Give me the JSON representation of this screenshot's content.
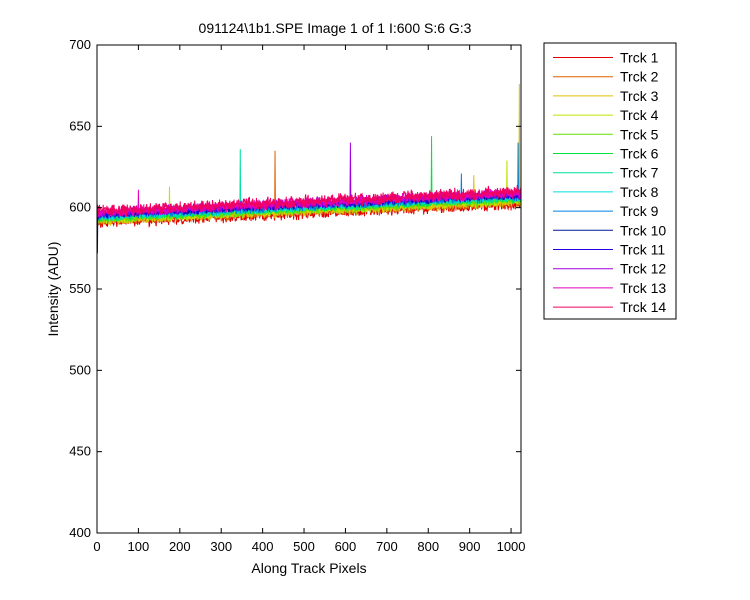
{
  "chart_data": {
    "type": "line",
    "title": "091124\\1b1.SPE  Image 1 of 1  I:600  S:6  G:3",
    "xlabel": "Along Track Pixels",
    "ylabel": "Intensity (ADU)",
    "xlim": [
      0,
      1024
    ],
    "ylim": [
      400,
      700
    ],
    "xticks": [
      0,
      100,
      200,
      300,
      400,
      500,
      600,
      700,
      800,
      900,
      1000
    ],
    "yticks": [
      400,
      450,
      500,
      550,
      600,
      650,
      700
    ],
    "grid": false,
    "legend_position": "outside-right",
    "x_start": 1,
    "x_end": 1024,
    "series": [
      {
        "name": "Trck 1",
        "color": "#e00000",
        "start": 591,
        "end": 602,
        "noise": 2.6,
        "spikes": []
      },
      {
        "name": "Trck 2",
        "color": "#e06000",
        "start": 592,
        "end": 603,
        "noise": 2.4,
        "spikes": [
          {
            "x": 430,
            "y": 635
          }
        ]
      },
      {
        "name": "Trck 3",
        "color": "#e0c000",
        "start": 592,
        "end": 604,
        "noise": 2.3,
        "spikes": [
          {
            "x": 1020,
            "y": 676
          },
          {
            "x": 910,
            "y": 620
          }
        ]
      },
      {
        "name": "Trck 4",
        "color": "#c0e000",
        "start": 593,
        "end": 604,
        "noise": 2.2,
        "spikes": [
          {
            "x": 175,
            "y": 613
          },
          {
            "x": 990,
            "y": 629
          }
        ]
      },
      {
        "name": "Trck 5",
        "color": "#60e000",
        "start": 593,
        "end": 605,
        "noise": 2.1,
        "spikes": []
      },
      {
        "name": "Trck 6",
        "color": "#00e040",
        "start": 594,
        "end": 606,
        "noise": 2.0,
        "spikes": [
          {
            "x": 808,
            "y": 644
          }
        ]
      },
      {
        "name": "Trck 7",
        "color": "#00e0a0",
        "start": 594,
        "end": 606,
        "noise": 2.0,
        "spikes": [
          {
            "x": 346,
            "y": 636
          }
        ]
      },
      {
        "name": "Trck 8",
        "color": "#00e0e0",
        "start": 595,
        "end": 607,
        "noise": 2.0,
        "spikes": []
      },
      {
        "name": "Trck 9",
        "color": "#0080e0",
        "start": 595,
        "end": 607,
        "noise": 2.0,
        "spikes": [
          {
            "x": 880,
            "y": 621
          },
          {
            "x": 1017,
            "y": 640
          }
        ]
      },
      {
        "name": "Trck 10",
        "color": "#001890",
        "start": 596,
        "end": 608,
        "noise": 2.0,
        "spikes": [
          {
            "x": 1,
            "y": 572
          }
        ]
      },
      {
        "name": "Trck 11",
        "color": "#2000e0",
        "start": 596,
        "end": 608,
        "noise": 2.0,
        "spikes": []
      },
      {
        "name": "Trck 12",
        "color": "#a000e0",
        "start": 597,
        "end": 609,
        "noise": 2.2,
        "spikes": [
          {
            "x": 612,
            "y": 640
          }
        ]
      },
      {
        "name": "Trck 13",
        "color": "#e000c0",
        "start": 597,
        "end": 609,
        "noise": 2.4,
        "spikes": [
          {
            "x": 100,
            "y": 611
          }
        ]
      },
      {
        "name": "Trck 14",
        "color": "#f00060",
        "start": 598,
        "end": 610,
        "noise": 2.8,
        "spikes": []
      }
    ]
  }
}
